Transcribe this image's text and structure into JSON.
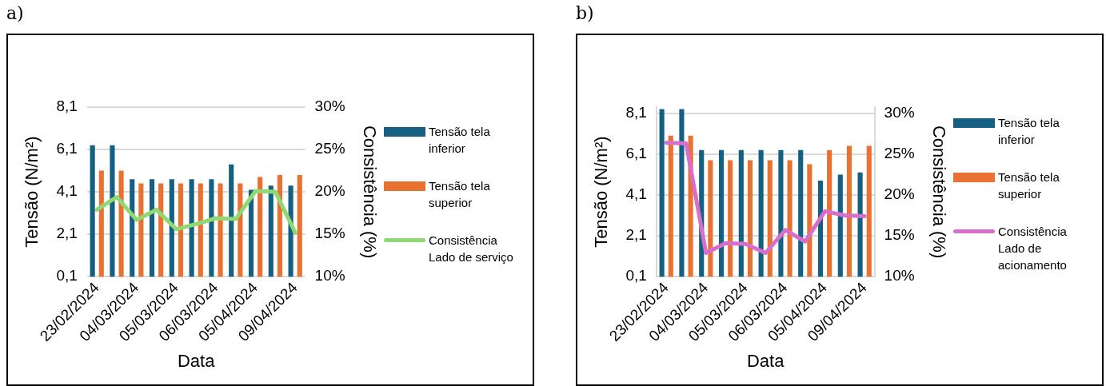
{
  "chart_data": [
    {
      "type": "bar",
      "title": "a)",
      "xlabel": "Data",
      "ylabel": "Tensão (N/m²)",
      "y2label": "Consistência (%)",
      "categories": [
        "23/02/2024",
        null,
        "04/03/2024",
        null,
        "05/03/2024",
        null,
        "06/03/2024",
        null,
        "05/04/2024",
        null,
        "09/04/2024"
      ],
      "series": [
        {
          "name": "Tensão tela inferior",
          "color": "#156082",
          "values": [
            6.3,
            6.3,
            4.7,
            4.7,
            4.7,
            4.7,
            4.7,
            5.4,
            4.2,
            4.4,
            4.4
          ]
        },
        {
          "name": "Tensão tela superior",
          "color": "#e97132",
          "values": [
            5.1,
            5.1,
            4.5,
            4.5,
            4.5,
            4.5,
            4.5,
            4.5,
            4.8,
            4.9,
            4.9
          ]
        },
        {
          "name": "Consistência Lado de serviço",
          "type": "line",
          "axis": "y2",
          "color": "#8ed973",
          "values": [
            17.9,
            19.4,
            16.7,
            17.9,
            15.6,
            16.2,
            16.9,
            16.8,
            20.1,
            20.0,
            15.2
          ]
        }
      ],
      "ylim": [
        0.1,
        8.1
      ],
      "yticks": [
        {
          "value": 0.1,
          "label": "0,1"
        },
        {
          "value": 2.1,
          "label": "2,1"
        },
        {
          "value": 4.1,
          "label": "4,1"
        },
        {
          "value": 6.1,
          "label": "6,1"
        },
        {
          "value": 8.1,
          "label": "8,1"
        }
      ],
      "y2lim": [
        10,
        30
      ],
      "y2ticks": [
        {
          "value": 10,
          "label": "10%"
        },
        {
          "value": 15,
          "label": "15%"
        },
        {
          "value": 20,
          "label": "20%"
        },
        {
          "value": 25,
          "label": "25%"
        },
        {
          "value": 30,
          "label": "30%"
        }
      ],
      "grid": "y",
      "legend": "right",
      "marker": "none",
      "line_style": "solid"
    },
    {
      "type": "bar",
      "title": "b)",
      "xlabel": "Data",
      "ylabel": "Tensão (N/m²)",
      "y2label": "Consistência (%)",
      "categories": [
        "23/02/2024",
        null,
        "04/03/2024",
        null,
        "05/03/2024",
        null,
        "06/03/2024",
        null,
        "05/04/2024",
        null,
        "09/04/2024"
      ],
      "series": [
        {
          "name": "Tensão tela inferior",
          "color": "#156082",
          "values": [
            8.3,
            8.3,
            6.3,
            6.3,
            6.3,
            6.3,
            6.3,
            6.3,
            4.8,
            5.1,
            5.2
          ]
        },
        {
          "name": "Tensão tela superior",
          "color": "#e97132",
          "values": [
            7.0,
            7.0,
            5.8,
            5.8,
            5.8,
            5.8,
            5.8,
            5.6,
            6.3,
            6.5,
            6.5
          ]
        },
        {
          "name": "Consistência Lado de acionamento",
          "type": "line",
          "axis": "y2",
          "color": "#d86ecc",
          "values": [
            26.4,
            26.3,
            12.9,
            14.1,
            14.0,
            12.9,
            15.7,
            14.3,
            18.0,
            17.5,
            17.4
          ]
        }
      ],
      "ylim": [
        0.1,
        8.4
      ],
      "yticks": [
        {
          "value": 0.1,
          "label": "0,1"
        },
        {
          "value": 2.1,
          "label": "2,1"
        },
        {
          "value": 4.1,
          "label": "4,1"
        },
        {
          "value": 6.1,
          "label": "6,1"
        },
        {
          "value": 8.1,
          "label": "8,1"
        }
      ],
      "y2lim": [
        10,
        30.75
      ],
      "y2ticks": [
        {
          "value": 10,
          "label": "10%"
        },
        {
          "value": 15,
          "label": "15%"
        },
        {
          "value": 20,
          "label": "20%"
        },
        {
          "value": 25,
          "label": "25%"
        },
        {
          "value": 30,
          "label": "30%"
        }
      ],
      "grid": "y",
      "legend": "right",
      "marker": "none",
      "line_style": "solid"
    }
  ]
}
